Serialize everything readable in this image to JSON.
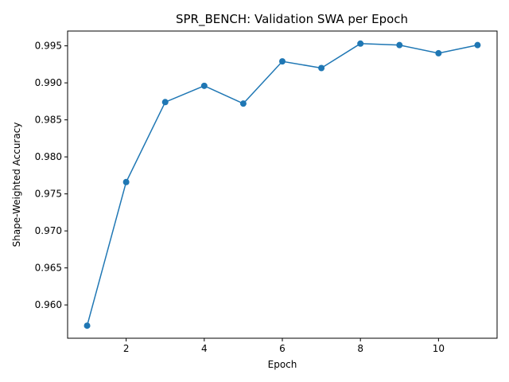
{
  "chart_data": {
    "type": "line",
    "title": "SPR_BENCH: Validation SWA per Epoch",
    "xlabel": "Epoch",
    "ylabel": "Shape-Weighted Accuracy",
    "x": [
      1,
      2,
      3,
      4,
      5,
      6,
      7,
      8,
      9,
      10,
      11
    ],
    "series": [
      {
        "values": [
          0.9572,
          0.9766,
          0.9874,
          0.9896,
          0.9872,
          0.9929,
          0.992,
          0.9953,
          0.9951,
          0.994,
          0.9951
        ]
      }
    ],
    "xlim": [
      0.5,
      11.5
    ],
    "ylim": [
      0.9555,
      0.997
    ],
    "xticks": [
      2,
      4,
      6,
      8,
      10
    ],
    "yticks": [
      0.96,
      0.965,
      0.97,
      0.975,
      0.98,
      0.985,
      0.99,
      0.995
    ],
    "grid": false,
    "legend": "none",
    "colors": {
      "series": "#1f77b4"
    }
  }
}
